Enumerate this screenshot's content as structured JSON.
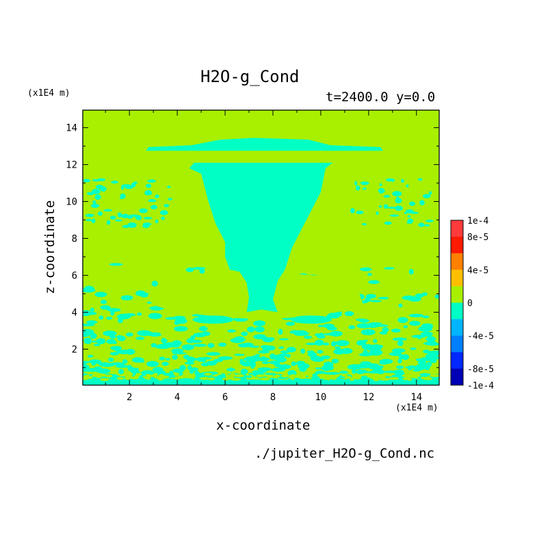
{
  "chart_data": {
    "type": "heatmap",
    "title": "H2O-g_Cond",
    "subtitle": "t=2400.0 y=0.0",
    "xlabel": "x-coordinate",
    "ylabel": "z-coordinate",
    "x_unit": "(x1E4 m)",
    "y_unit": "(x1E4 m)",
    "xlim": [
      0.05,
      14.95
    ],
    "ylim": [
      0.05,
      14.95
    ],
    "x_ticks": [
      "2",
      "4",
      "6",
      "8",
      "10",
      "12",
      "14"
    ],
    "y_ticks": [
      "2",
      "4",
      "6",
      "8",
      "10",
      "12",
      "14"
    ],
    "background_level": 0,
    "features": [
      {
        "name": "anvil-top",
        "value": -2e-05,
        "x_range": [
          2.8,
          12.5
        ],
        "z_range": [
          12.7,
          13.4
        ]
      },
      {
        "name": "cloud-cone",
        "value": -2e-05,
        "z_top": 12.1,
        "z_bottom": 4.0
      },
      {
        "name": "lower-turbulent-layer",
        "value": -2e-05,
        "z_range": [
          0.05,
          6.5
        ]
      }
    ],
    "colorbar": {
      "labels": [
        "1e-4",
        "8e-5",
        "4e-5",
        "0",
        "-4e-5",
        "-8e-5",
        "-1e-4"
      ],
      "levels": [
        0.0001,
        8e-05,
        6e-05,
        4e-05,
        2e-05,
        0,
        -2e-05,
        -4e-05,
        -6e-05,
        -8e-05,
        -0.0001
      ],
      "colors": [
        "#ff3b3b",
        "#ff1a00",
        "#ff8000",
        "#ffbf00",
        "#a8f000",
        "#00ffc4",
        "#00b4ff",
        "#0080ff",
        "#0028ff",
        "#0000b4"
      ]
    },
    "grid": false
  },
  "footer": {
    "filename": "./jupiter_H2O-g_Cond.nc"
  },
  "colors": {
    "positive_small": "#a8f000",
    "negative_small": "#00ffc4"
  }
}
